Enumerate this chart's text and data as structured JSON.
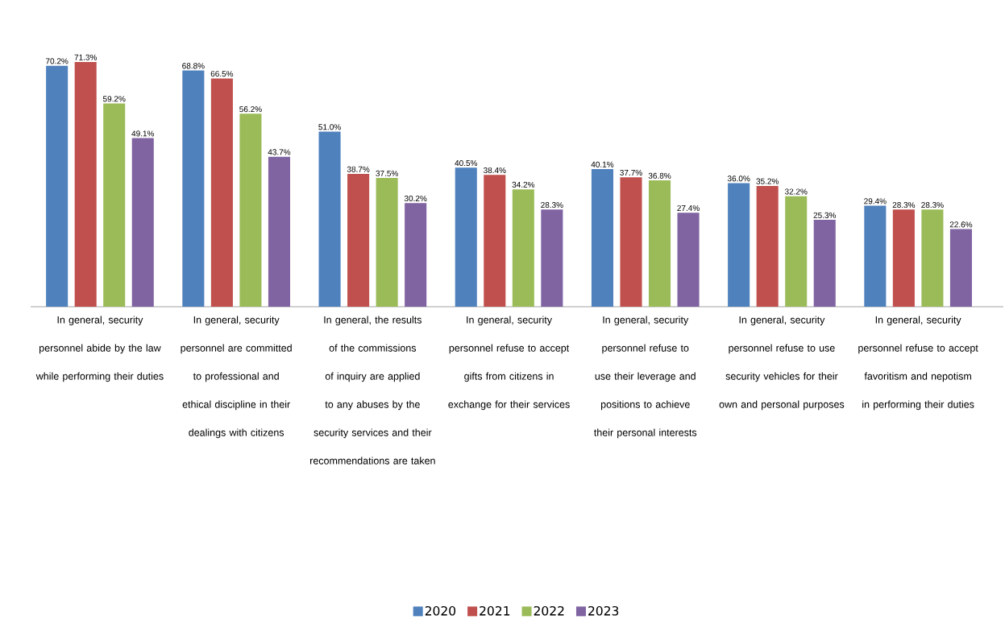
{
  "chart_data": {
    "type": "bar",
    "legend": "bottom",
    "categories": [
      "In general, security personnel abide by the law while performing their duties",
      "In general, security personnel are committed to professional and ethical discipline in their dealings with citizens",
      "In general, the results of the commissions of inquiry are applied to any abuses by the security services and their recommendations are taken",
      "In general, security personnel refuse to accept gifts from citizens in exchange for their services",
      "In general, security personnel refuse to use their leverage and positions to achieve their personal interests",
      "In general, security personnel refuse to use security vehicles for their own and personal purposes",
      "In general, security personnel refuse to accept favoritism and nepotism in performing their duties"
    ],
    "series": [
      {
        "name": "2020",
        "color": "#4f81bd",
        "values": [
          70.2,
          68.8,
          51.0,
          40.5,
          40.1,
          36.0,
          29.4
        ],
        "value_labels": [
          "70.2%",
          "68.8%",
          "51.0%",
          "40.5%",
          "40.1%",
          "36.0%",
          "29.4%"
        ]
      },
      {
        "name": "2021",
        "color": "#c0504d",
        "values": [
          71.3,
          66.5,
          38.7,
          38.4,
          37.7,
          35.2,
          28.3
        ],
        "value_labels": [
          "71.3%",
          "66.5%",
          "38.7%",
          "38.4%",
          "37.7%",
          "35.2%",
          "28.3%"
        ]
      },
      {
        "name": "2022",
        "color": "#9bbb59",
        "values": [
          59.2,
          56.2,
          37.5,
          34.2,
          36.8,
          32.2,
          28.3
        ],
        "value_labels": [
          "59.2%",
          "56.2%",
          "37.5%",
          "34.2%",
          "36.8%",
          "32.2%",
          "28.3%"
        ]
      },
      {
        "name": "2023",
        "color": "#8064a2",
        "values": [
          49.1,
          43.7,
          30.2,
          28.3,
          27.4,
          25.3,
          22.6
        ],
        "value_labels": [
          "49.1%",
          "43.7%",
          "30.2%",
          "28.3%",
          "27.4%",
          "25.3%",
          "22.6%"
        ]
      }
    ]
  }
}
